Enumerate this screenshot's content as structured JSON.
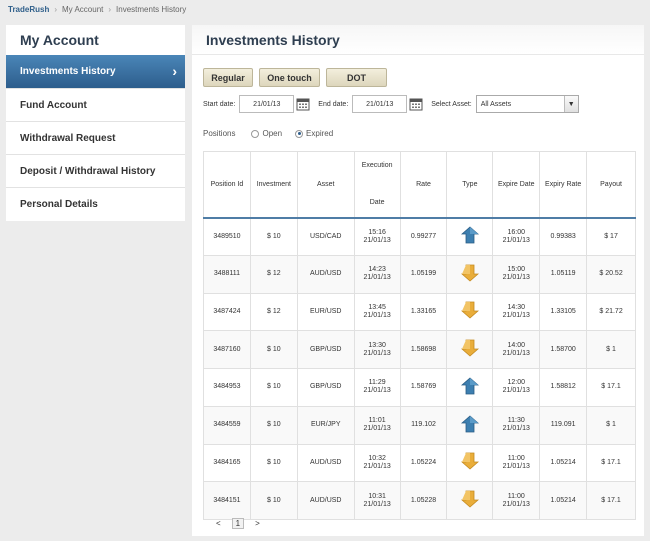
{
  "breadcrumb": {
    "brand": "TradeRush",
    "items": [
      "My Account",
      "Investments History"
    ],
    "sep": "›"
  },
  "sidebar": {
    "title": "My Account",
    "items": [
      {
        "label": "Investments History",
        "active": true
      },
      {
        "label": "Fund Account"
      },
      {
        "label": "Withdrawal Request"
      },
      {
        "label": "Deposit / Withdrawal History"
      },
      {
        "label": "Personal Details"
      }
    ],
    "chevron": "›"
  },
  "main": {
    "title": "Investments History",
    "tabs": [
      "Regular",
      "One touch",
      "DOT"
    ],
    "filters": {
      "start_label": "Start date:",
      "start_value": "21/01/13",
      "end_label": "End date:",
      "end_value": "21/01/13",
      "asset_label": "Select Asset:",
      "asset_value": "All Assets"
    },
    "positions": {
      "label": "Positions",
      "open": "Open",
      "expired": "Expired",
      "selected": "expired"
    },
    "table": {
      "headers": [
        "Position Id",
        "Investment",
        "Asset",
        "Execution",
        "Date",
        "Rate",
        "Type",
        "Expire Date",
        "Expiry Rate",
        "Payout"
      ],
      "rows": [
        {
          "id": "3489510",
          "inv": "$ 10",
          "asset": "USD/CAD",
          "time": "15:16",
          "date": "21/01/13",
          "rate": "0.99277",
          "type": "up",
          "exp_time": "16:00",
          "exp_date": "21/01/13",
          "exp_rate": "0.99383",
          "payout": "$ 17"
        },
        {
          "id": "3488111",
          "inv": "$ 12",
          "asset": "AUD/USD",
          "time": "14:23",
          "date": "21/01/13",
          "rate": "1.05199",
          "type": "down",
          "exp_time": "15:00",
          "exp_date": "21/01/13",
          "exp_rate": "1.05119",
          "payout": "$ 20.52"
        },
        {
          "id": "3487424",
          "inv": "$ 12",
          "asset": "EUR/USD",
          "time": "13:45",
          "date": "21/01/13",
          "rate": "1.33165",
          "type": "down",
          "exp_time": "14:30",
          "exp_date": "21/01/13",
          "exp_rate": "1.33105",
          "payout": "$ 21.72"
        },
        {
          "id": "3487160",
          "inv": "$ 10",
          "asset": "GBP/USD",
          "time": "13:30",
          "date": "21/01/13",
          "rate": "1.58698",
          "type": "down",
          "exp_time": "14:00",
          "exp_date": "21/01/13",
          "exp_rate": "1.58700",
          "payout": "$ 1"
        },
        {
          "id": "3484953",
          "inv": "$ 10",
          "asset": "GBP/USD",
          "time": "11:29",
          "date": "21/01/13",
          "rate": "1.58769",
          "type": "up",
          "exp_time": "12:00",
          "exp_date": "21/01/13",
          "exp_rate": "1.58812",
          "payout": "$ 17.1"
        },
        {
          "id": "3484559",
          "inv": "$ 10",
          "asset": "EUR/JPY",
          "time": "11:01",
          "date": "21/01/13",
          "rate": "119.102",
          "type": "up",
          "exp_time": "11:30",
          "exp_date": "21/01/13",
          "exp_rate": "119.091",
          "payout": "$ 1"
        },
        {
          "id": "3484165",
          "inv": "$ 10",
          "asset": "AUD/USD",
          "time": "10:32",
          "date": "21/01/13",
          "rate": "1.05224",
          "type": "down",
          "exp_time": "11:00",
          "exp_date": "21/01/13",
          "exp_rate": "1.05214",
          "payout": "$ 17.1"
        },
        {
          "id": "3484151",
          "inv": "$ 10",
          "asset": "AUD/USD",
          "time": "10:31",
          "date": "21/01/13",
          "rate": "1.05228",
          "type": "down",
          "exp_time": "11:00",
          "exp_date": "21/01/13",
          "exp_rate": "1.05214",
          "payout": "$ 17.1"
        }
      ]
    },
    "pager": {
      "prev": "<",
      "page": "1",
      "next": ">"
    }
  },
  "icons": {
    "up": "up-arrow-icon",
    "down": "down-arrow-icon",
    "calendar": "calendar-icon"
  },
  "colors": {
    "up": "#3d7fb0",
    "down": "#e9ad3a",
    "accent": "#2d5d8c"
  }
}
